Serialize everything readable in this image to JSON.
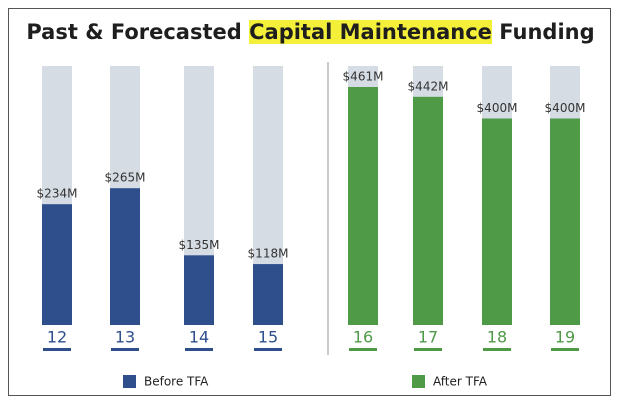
{
  "chart_data": {
    "type": "bar",
    "title_parts": [
      "Past & Forecasted ",
      "Capital Maintenance",
      " Funding"
    ],
    "categories": [
      "12",
      "13",
      "14",
      "15",
      "16",
      "17",
      "18",
      "19"
    ],
    "series": [
      {
        "name": "Before TFA",
        "color": "#2e4f8c",
        "values": [
          234,
          265,
          135,
          118,
          null,
          null,
          null,
          null
        ],
        "value_labels": [
          "$234M",
          "$265M",
          "$135M",
          "$118M",
          null,
          null,
          null,
          null
        ]
      },
      {
        "name": "After TFA",
        "color": "#4f9a47",
        "values": [
          null,
          null,
          null,
          null,
          461,
          442,
          400,
          400
        ],
        "value_labels": [
          null,
          null,
          null,
          null,
          "$461M",
          "$442M",
          "$400M",
          "$400M"
        ]
      }
    ]
  }
}
